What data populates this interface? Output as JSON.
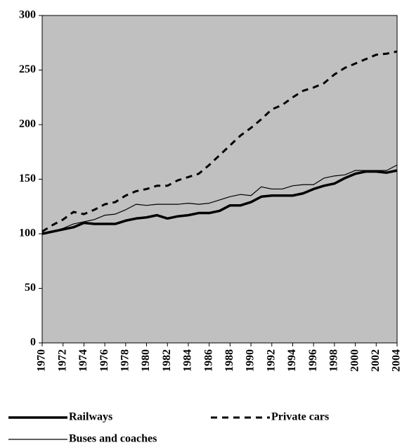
{
  "chart_data": {
    "type": "line",
    "x": [
      1970,
      1971,
      1972,
      1973,
      1974,
      1975,
      1976,
      1977,
      1978,
      1979,
      1980,
      1981,
      1982,
      1983,
      1984,
      1985,
      1986,
      1987,
      1988,
      1989,
      1990,
      1991,
      1992,
      1993,
      1994,
      1995,
      1996,
      1997,
      1998,
      1999,
      2000,
      2001,
      2002,
      2003,
      2004
    ],
    "series": [
      {
        "name": "Railways",
        "color": "#000000",
        "linewidth": 3.5,
        "dashed": false,
        "values": [
          100,
          102,
          104,
          106,
          110,
          109,
          109,
          109,
          112,
          114,
          115,
          117,
          114,
          116,
          117,
          119,
          119,
          121,
          126,
          126,
          129,
          134,
          135,
          135,
          135,
          137,
          141,
          144,
          146,
          151,
          155,
          157,
          157,
          156,
          158
        ]
      },
      {
        "name": "Private cars",
        "color": "#000000",
        "linewidth": 3,
        "dashed": true,
        "values": [
          102,
          108,
          113,
          120,
          118,
          122,
          127,
          129,
          135,
          139,
          141,
          144,
          144,
          149,
          152,
          155,
          163,
          172,
          181,
          190,
          197,
          205,
          214,
          218,
          225,
          231,
          234,
          238,
          246,
          252,
          256,
          260,
          264,
          265,
          267
        ]
      },
      {
        "name": "Buses and coaches",
        "color": "#000000",
        "linewidth": 1.2,
        "dashed": false,
        "values": [
          100,
          102,
          105,
          109,
          111,
          113,
          117,
          118,
          122,
          127,
          126,
          127,
          127,
          127,
          128,
          127,
          128,
          131,
          134,
          136,
          135,
          143,
          141,
          141,
          144,
          145,
          145,
          151,
          153,
          154,
          158,
          158,
          158,
          158,
          163
        ]
      }
    ],
    "xlim": [
      1970,
      2004
    ],
    "xticks": [
      1970,
      1972,
      1974,
      1976,
      1978,
      1980,
      1982,
      1984,
      1986,
      1988,
      1990,
      1992,
      1994,
      1996,
      1998,
      2000,
      2002,
      2004
    ],
    "ylim": [
      0,
      300
    ],
    "yticks": [
      0,
      50,
      100,
      150,
      200,
      250,
      300
    ],
    "background": "#c0c0c0",
    "legend": "bottom"
  }
}
